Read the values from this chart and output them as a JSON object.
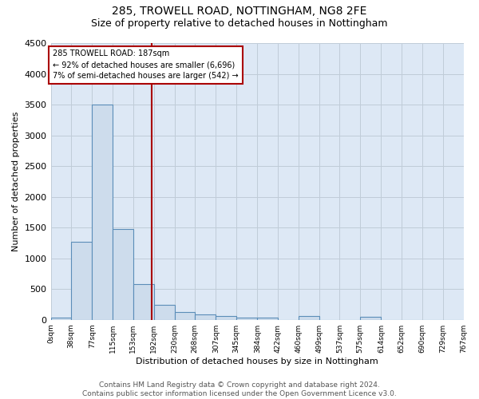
{
  "title1": "285, TROWELL ROAD, NOTTINGHAM, NG8 2FE",
  "title2": "Size of property relative to detached houses in Nottingham",
  "xlabel": "Distribution of detached houses by size in Nottingham",
  "ylabel": "Number of detached properties",
  "bin_edges": [
    0,
    38,
    77,
    115,
    153,
    192,
    230,
    268,
    307,
    345,
    384,
    422,
    460,
    499,
    537,
    575,
    614,
    652,
    690,
    729,
    767
  ],
  "bar_heights": [
    40,
    1270,
    3500,
    1470,
    580,
    240,
    120,
    90,
    60,
    40,
    40,
    0,
    60,
    0,
    0,
    50,
    0,
    0,
    0,
    0
  ],
  "bar_color": "#cddcec",
  "bar_edge_color": "#5b8db8",
  "property_line_x": 187,
  "property_line_color": "#aa0000",
  "annotation_line1": "285 TROWELL ROAD: 187sqm",
  "annotation_line2": "← 92% of detached houses are smaller (6,696)",
  "annotation_line3": "7% of semi-detached houses are larger (542) →",
  "annotation_box_color": "#aa0000",
  "ylim": [
    0,
    4500
  ],
  "yticks": [
    0,
    500,
    1000,
    1500,
    2000,
    2500,
    3000,
    3500,
    4000,
    4500
  ],
  "bg_color": "#dde8f5",
  "grid_color": "#c0ccd8",
  "footer": "Contains HM Land Registry data © Crown copyright and database right 2024.\nContains public sector information licensed under the Open Government Licence v3.0.",
  "title1_fontsize": 10,
  "title2_fontsize": 9,
  "annotation_fontsize": 7,
  "footer_fontsize": 6.5,
  "ylabel_fontsize": 8,
  "xlabel_fontsize": 8,
  "ytick_fontsize": 8,
  "xtick_fontsize": 6.5
}
